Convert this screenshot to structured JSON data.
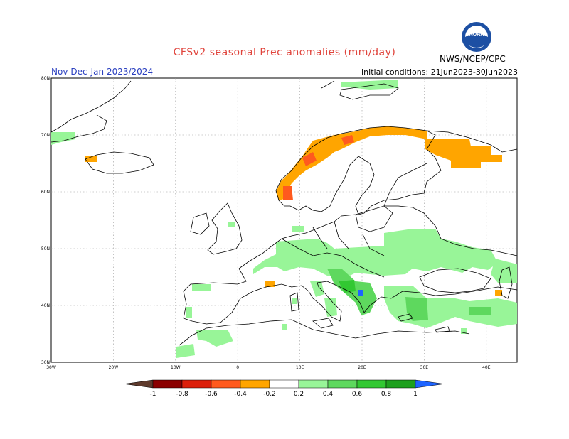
{
  "header": {
    "title": "CFSv2 seasonal Prec anomalies (mm/day)",
    "period": "Nov-Dec-Jan 2023/2024",
    "initial_conditions": "Initial conditions: 21Jun2023-30Jun2023",
    "organization": "NWS/NCEP/CPC",
    "logo_text": "NOAA"
  },
  "map": {
    "lat_labels": [
      "80N",
      "70N",
      "60N",
      "50N",
      "40N",
      "30N"
    ],
    "lon_labels": [
      "30W",
      "20W",
      "10W",
      "0",
      "10E",
      "20E",
      "30E",
      "40E"
    ],
    "grid": true
  },
  "colorbar": {
    "labels": [
      "-1",
      "-0.8",
      "-0.6",
      "-0.4",
      "-0.2",
      "0.2",
      "0.4",
      "0.6",
      "0.8",
      "1"
    ],
    "colors": {
      "lt_-1": "#5e3a2c",
      "-1_-0.8": "#8b0000",
      "-0.8_-0.6": "#dc1f0a",
      "-0.6_-0.4": "#ff5a1e",
      "-0.4_-0.2": "#ffa500",
      "-0.2_0.2": "#ffffff",
      "0.2_0.4": "#98f598",
      "0.4_0.6": "#5ed85e",
      "0.6_0.8": "#32c832",
      "0.8_1": "#1ea01e",
      "gt_1": "#1e64ff"
    }
  }
}
